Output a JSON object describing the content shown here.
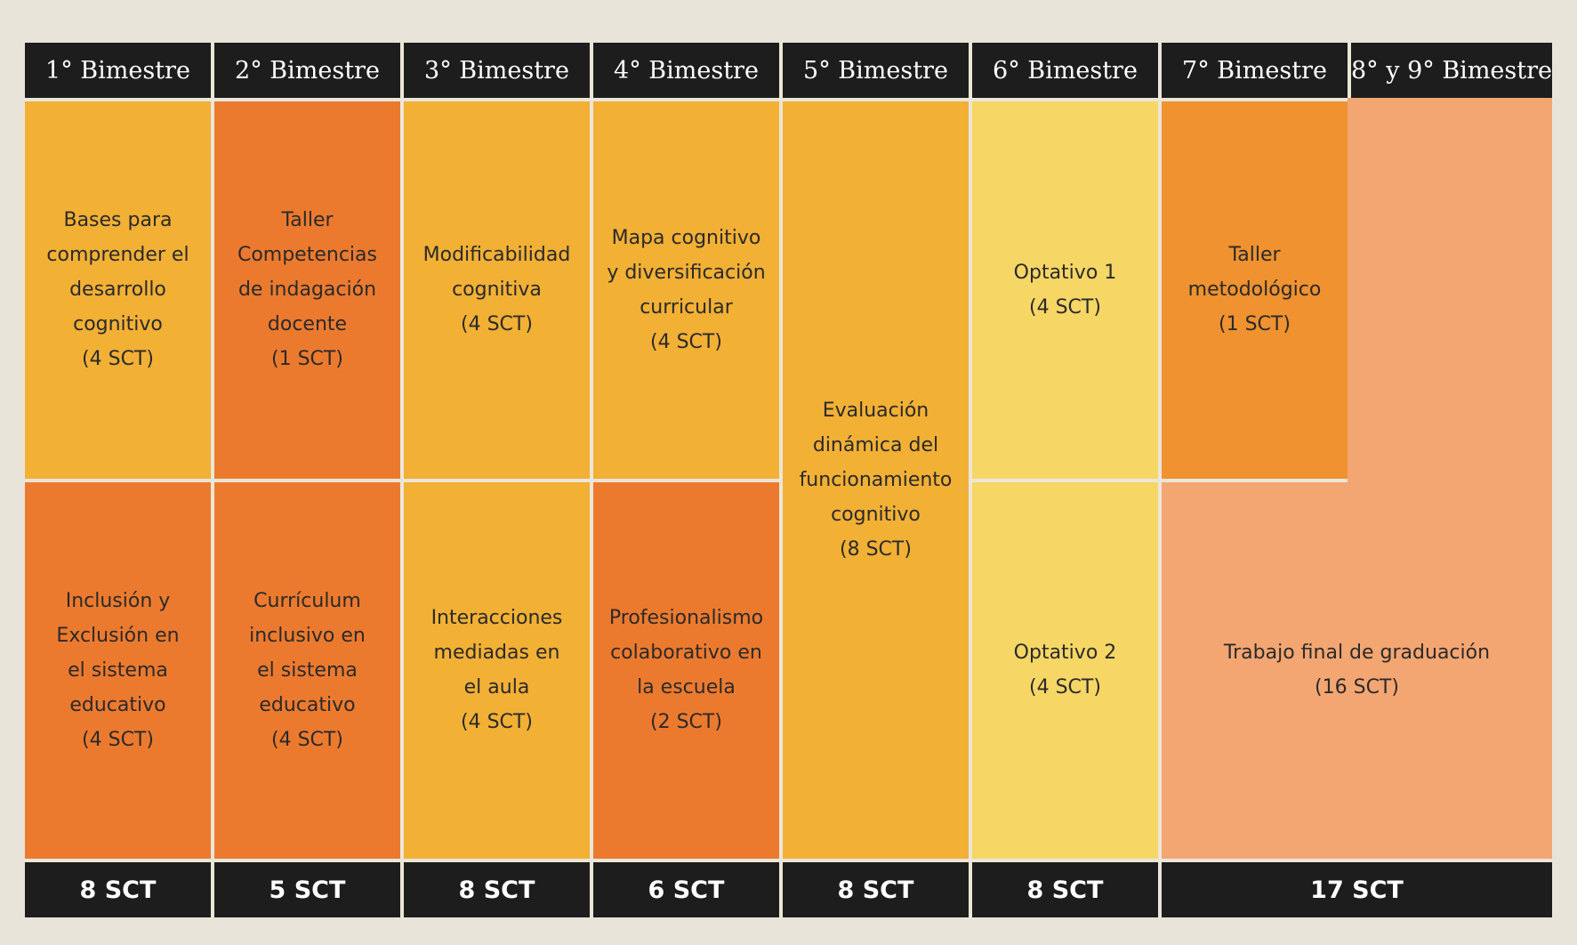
{
  "headers": [
    "1° Bimestre",
    "2° Bimestre",
    "3° Bimestre",
    "4° Bimestre",
    "5° Bimestre",
    "6° Bimestre",
    "7° Bimestre",
    "8° y 9° Bimestre"
  ],
  "courses": {
    "b1_top": {
      "lines": [
        "Bases para",
        "comprender el",
        "desarrollo",
        "cognitivo"
      ],
      "credits": "(4 SCT)"
    },
    "b1_bottom": {
      "lines": [
        "Inclusión y",
        "Exclusión en",
        "el sistema",
        "educativo"
      ],
      "credits": "(4 SCT)"
    },
    "b2_top": {
      "lines": [
        "Taller",
        "Competencias",
        "de indagación",
        "docente"
      ],
      "credits": "(1 SCT)"
    },
    "b2_bottom": {
      "lines": [
        "Currículum",
        "inclusivo en",
        "el sistema",
        "educativo"
      ],
      "credits": "(4 SCT)"
    },
    "b3_top": {
      "lines": [
        "Modificabilidad",
        "cognitiva"
      ],
      "credits": "(4 SCT)"
    },
    "b3_bottom": {
      "lines": [
        "Interacciones",
        "mediadas en",
        "el aula"
      ],
      "credits": "(4 SCT)"
    },
    "b4_top": {
      "lines": [
        "Mapa cognitivo",
        "y diversificación",
        "curricular"
      ],
      "credits": "(4 SCT)"
    },
    "b4_bottom": {
      "lines": [
        "Profesionalismo",
        "colaborativo en",
        "la escuela"
      ],
      "credits": "(2 SCT)"
    },
    "b5": {
      "lines": [
        "Evaluación",
        "dinámica del",
        "funcionamiento",
        "cognitivo"
      ],
      "credits": "(8 SCT)"
    },
    "b6_top": {
      "lines": [
        "Optativo 1"
      ],
      "credits": "(4 SCT)"
    },
    "b6_bottom": {
      "lines": [
        "Optativo 2"
      ],
      "credits": "(4 SCT)"
    },
    "b7_top": {
      "lines": [
        "Taller",
        "metodológico"
      ],
      "credits": "(1 SCT)"
    },
    "final": {
      "lines": [
        "Trabajo final de graduación"
      ],
      "credits": "(16 SCT)"
    }
  },
  "totals": [
    "8 SCT",
    "5 SCT",
    "8 SCT",
    "6 SCT",
    "8 SCT",
    "8 SCT",
    "17 SCT"
  ],
  "colors": {
    "header_bg": "#1d1d1d",
    "amber": "#f2b035",
    "orange": "#ec7a2e",
    "orange_light": "#ef922f",
    "yellow": "#f6d665",
    "peach": "#f4a672",
    "page_bg": "#e8e4da"
  }
}
